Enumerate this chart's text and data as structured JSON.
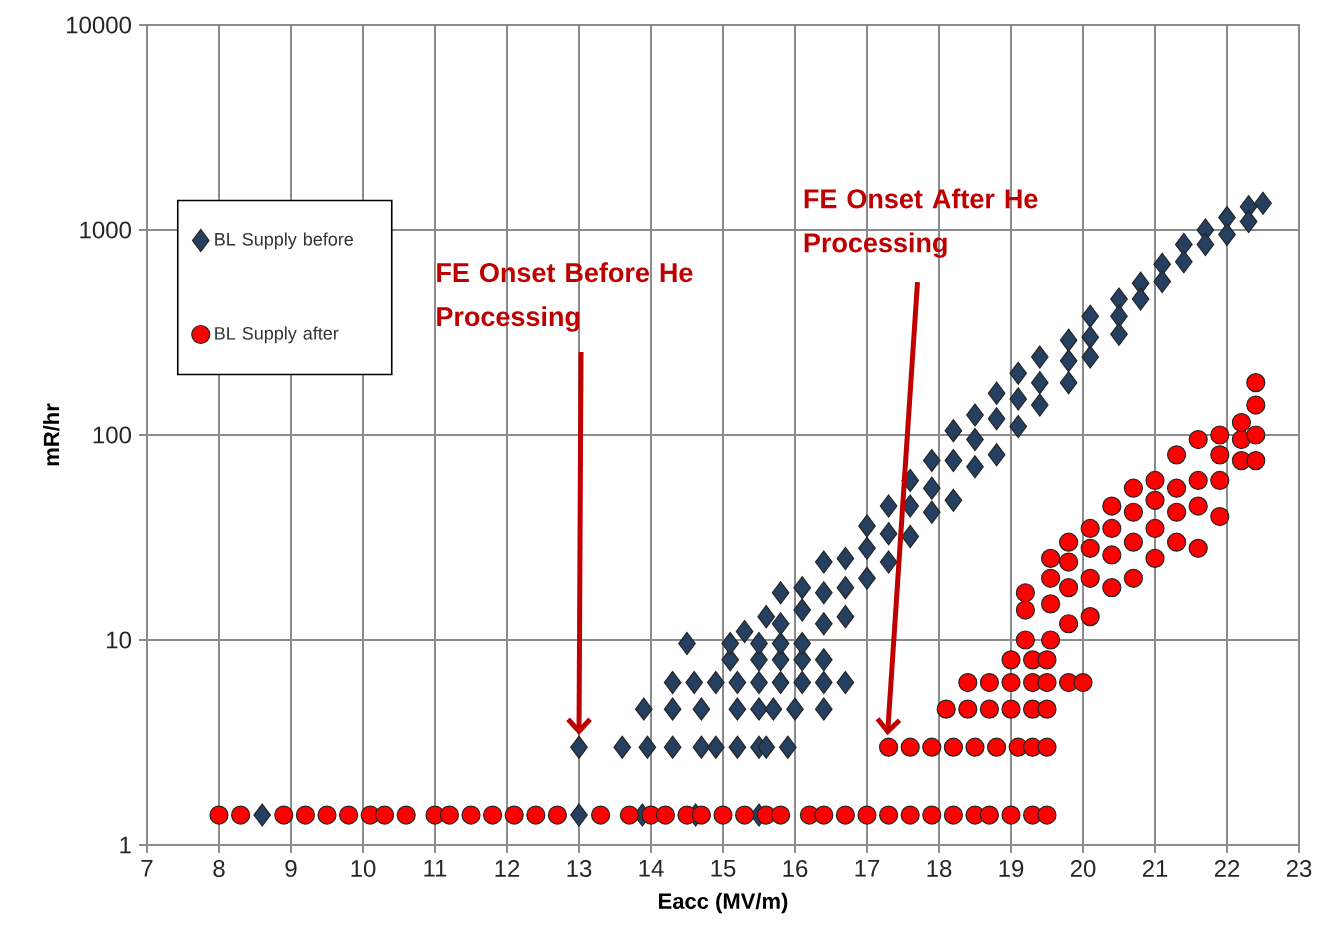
{
  "chart_data": {
    "type": "scatter",
    "xlabel": "Eacc (MV/m)",
    "ylabel": "mR/hr",
    "xlim": [
      7,
      23
    ],
    "xticks": [
      7,
      8,
      9,
      10,
      11,
      12,
      13,
      14,
      15,
      16,
      17,
      18,
      19,
      20,
      21,
      22,
      23
    ],
    "ylim": [
      1,
      10000
    ],
    "yticks": [
      1,
      10,
      100,
      1000,
      10000
    ],
    "log": "y",
    "grid": true,
    "legend": "top left",
    "series": [
      {
        "name": "BL Supply before",
        "color": "#243f60",
        "marker": "diamond",
        "x": [
          8.6,
          13.0,
          13.88,
          14.62,
          15.5,
          13.0,
          13.6,
          13.95,
          14.3,
          14.7,
          14.9,
          15.2,
          15.5,
          15.6,
          15.9,
          13.9,
          14.3,
          14.7,
          15.2,
          15.5,
          15.7,
          16.0,
          16.4,
          14.3,
          14.6,
          14.9,
          15.2,
          15.5,
          15.8,
          16.1,
          16.4,
          16.7,
          15.1,
          15.5,
          15.8,
          16.1,
          16.4,
          14.5,
          15.1,
          15.5,
          15.8,
          16.1,
          15.3,
          15.6,
          15.8,
          15.8,
          16.1,
          16.1,
          16.4,
          16.4,
          16.4,
          16.7,
          16.7,
          16.7,
          17.0,
          17.0,
          17.0,
          17.3,
          17.3,
          17.3,
          17.6,
          17.6,
          17.6,
          17.9,
          17.9,
          17.9,
          18.2,
          18.2,
          18.2,
          18.5,
          18.5,
          18.5,
          18.8,
          18.8,
          18.8,
          19.1,
          19.1,
          19.1,
          19.4,
          19.4,
          19.4,
          19.8,
          19.8,
          19.8,
          20.1,
          20.1,
          20.1,
          20.5,
          20.5,
          20.5,
          20.8,
          20.8,
          21.1,
          21.1,
          21.4,
          21.4,
          21.7,
          21.7,
          22.0,
          22.0,
          22.3,
          22.3,
          22.5
        ],
        "values": [
          1.4,
          1.4,
          1.4,
          1.4,
          1.4,
          3,
          3,
          3,
          3,
          3,
          3,
          3,
          3,
          3,
          3,
          4.6,
          4.6,
          4.6,
          4.6,
          4.6,
          4.6,
          4.6,
          4.6,
          6.2,
          6.2,
          6.2,
          6.2,
          6.2,
          6.2,
          6.2,
          6.2,
          6.2,
          8,
          8,
          8,
          8,
          8,
          9.6,
          9.6,
          9.6,
          9.6,
          9.6,
          11,
          13,
          17,
          12,
          18,
          14,
          24,
          17,
          12,
          25,
          18,
          13,
          36,
          28,
          20,
          45,
          33,
          24,
          60,
          45,
          32,
          75,
          55,
          42,
          105,
          75,
          48,
          125,
          95,
          70,
          160,
          120,
          80,
          200,
          150,
          110,
          240,
          180,
          140,
          290,
          230,
          180,
          380,
          300,
          240,
          460,
          380,
          310,
          550,
          460,
          680,
          560,
          850,
          700,
          1000,
          850,
          1150,
          950,
          1300,
          1100,
          1350
        ]
      },
      {
        "name": "BL Supply after",
        "color": "#ff0000",
        "marker": "circle",
        "x": [
          8.0,
          8.3,
          8.9,
          9.2,
          9.5,
          9.8,
          10.1,
          10.3,
          10.6,
          11.0,
          11.2,
          11.5,
          11.8,
          12.1,
          12.4,
          12.7,
          13.3,
          13.7,
          14.0,
          14.2,
          14.5,
          14.7,
          15.0,
          15.3,
          15.6,
          15.8,
          16.2,
          16.4,
          16.7,
          17.0,
          17.3,
          17.6,
          17.9,
          18.2,
          18.5,
          18.7,
          19.0,
          19.3,
          19.5,
          17.3,
          17.6,
          17.9,
          18.2,
          18.5,
          18.8,
          19.1,
          19.3,
          19.5,
          18.1,
          18.4,
          18.7,
          19.0,
          19.3,
          19.5,
          18.4,
          18.7,
          19.0,
          19.3,
          19.5,
          19.8,
          20.0,
          19.0,
          19.3,
          19.5,
          19.2,
          19.2,
          19.2,
          19.55,
          19.55,
          19.55,
          19.55,
          19.8,
          19.8,
          19.8,
          19.8,
          20.1,
          20.1,
          20.1,
          20.1,
          20.4,
          20.4,
          20.4,
          20.4,
          20.7,
          20.7,
          20.7,
          20.7,
          21.0,
          21.0,
          21.0,
          21.0,
          21.3,
          21.3,
          21.3,
          21.3,
          21.6,
          21.6,
          21.6,
          21.6,
          21.9,
          21.9,
          21.9,
          21.9,
          22.2,
          22.2,
          22.2,
          22.4,
          22.4,
          22.4,
          22.4
        ],
        "values": [
          1.4,
          1.4,
          1.4,
          1.4,
          1.4,
          1.4,
          1.4,
          1.4,
          1.4,
          1.4,
          1.4,
          1.4,
          1.4,
          1.4,
          1.4,
          1.4,
          1.4,
          1.4,
          1.4,
          1.4,
          1.4,
          1.4,
          1.4,
          1.4,
          1.4,
          1.4,
          1.4,
          1.4,
          1.4,
          1.4,
          1.4,
          1.4,
          1.4,
          1.4,
          1.4,
          1.4,
          1.4,
          1.4,
          1.4,
          3,
          3,
          3,
          3,
          3,
          3,
          3,
          3,
          3,
          4.6,
          4.6,
          4.6,
          4.6,
          4.6,
          4.6,
          6.2,
          6.2,
          6.2,
          6.2,
          6.2,
          6.2,
          6.2,
          8,
          8,
          8,
          10,
          14,
          17,
          10,
          15,
          20,
          25,
          12,
          18,
          24,
          30,
          13,
          20,
          28,
          35,
          18,
          26,
          35,
          45,
          20,
          30,
          42,
          55,
          25,
          35,
          48,
          60,
          30,
          42,
          55,
          80,
          28,
          45,
          60,
          95,
          40,
          60,
          80,
          100,
          75,
          95,
          115,
          75,
          100,
          140,
          180
        ]
      }
    ],
    "annotations": [
      "FE Onset Before He Processing",
      "FE Onset After He Processing"
    ]
  }
}
